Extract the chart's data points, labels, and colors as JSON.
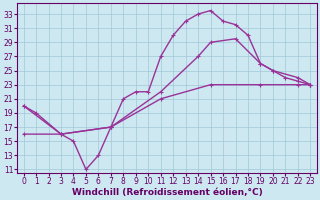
{
  "xlabel": "Windchill (Refroidissement éolien,°C)",
  "bg_color": "#cde8f0",
  "grid_color": "#a0c8d8",
  "line_color": "#993399",
  "spine_color": "#660066",
  "ylim": [
    10.5,
    34.5
  ],
  "xlim": [
    -0.5,
    23.5
  ],
  "yticks": [
    11,
    13,
    15,
    17,
    19,
    21,
    23,
    25,
    27,
    29,
    31,
    33
  ],
  "xticks": [
    0,
    1,
    2,
    3,
    4,
    5,
    6,
    7,
    8,
    9,
    10,
    11,
    12,
    13,
    14,
    15,
    16,
    17,
    18,
    19,
    20,
    21,
    22,
    23
  ],
  "line1_x": [
    0,
    1,
    3,
    4,
    5,
    6,
    7,
    8,
    9,
    10,
    11,
    12,
    13,
    14,
    15,
    16,
    17,
    18,
    19,
    20,
    21,
    22,
    23
  ],
  "line1_y": [
    20,
    19,
    16,
    15,
    11,
    13,
    17,
    21,
    22,
    22,
    27,
    30,
    32,
    33,
    33.5,
    32,
    31.5,
    30,
    26,
    25,
    24,
    23.5,
    23
  ],
  "line2_x": [
    0,
    3,
    7,
    11,
    14,
    15,
    17,
    19,
    20,
    22,
    23
  ],
  "line2_y": [
    20,
    16,
    17,
    22,
    27,
    29,
    29.5,
    26,
    25,
    24,
    23
  ],
  "line3_x": [
    0,
    3,
    7,
    11,
    15,
    19,
    22,
    23
  ],
  "line3_y": [
    16,
    16,
    17,
    21,
    23,
    23,
    23,
    23
  ],
  "line_width": 1.0,
  "marker_size": 2.5,
  "font_size": 6.5,
  "tick_font_size": 5.5
}
